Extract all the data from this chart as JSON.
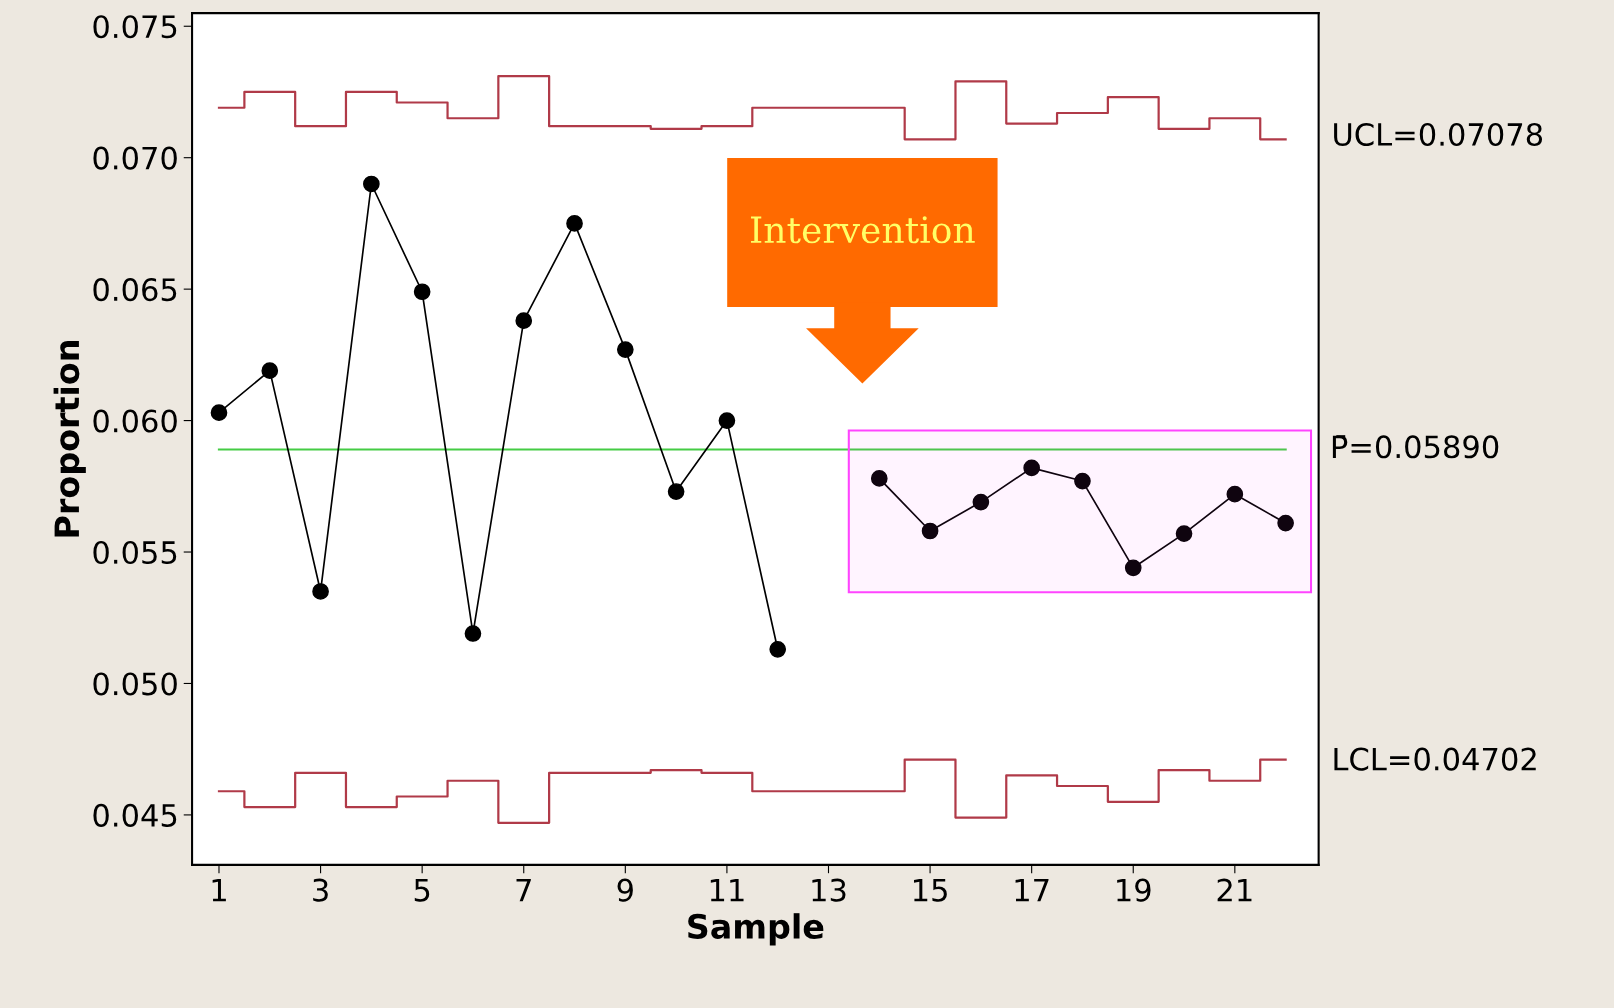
{
  "chart_data": {
    "type": "line",
    "xlabel": "Sample",
    "ylabel": "Proportion",
    "x": [
      1,
      2,
      3,
      4,
      5,
      6,
      7,
      8,
      9,
      10,
      11,
      12,
      13,
      14,
      15,
      16,
      17,
      18,
      19,
      20,
      21,
      22
    ],
    "series": [
      {
        "type": "step",
        "color": "#b03a48",
        "marker": "none",
        "values": [
          0.0719,
          0.0725,
          0.0712,
          0.0725,
          0.0721,
          0.0715,
          0.0731,
          0.0712,
          0.0712,
          0.0711,
          0.0712,
          0.0719,
          0.0719,
          0.0719,
          0.0707,
          0.0729,
          0.0713,
          0.0717,
          0.0723,
          0.0711,
          0.0715,
          0.0707
        ]
      },
      {
        "type": "step",
        "color": "#b03a48",
        "marker": "none",
        "values": [
          0.0459,
          0.0453,
          0.0466,
          0.0453,
          0.0457,
          0.0463,
          0.0447,
          0.0466,
          0.0466,
          0.0467,
          0.0466,
          0.0459,
          0.0459,
          0.0459,
          0.0471,
          0.0449,
          0.0465,
          0.0461,
          0.0455,
          0.0467,
          0.0463,
          0.0471
        ]
      },
      {
        "color": "#000000",
        "marker": "circle",
        "values": [
          0.0603,
          0.0619,
          0.0535,
          0.069,
          0.0649,
          0.0519,
          0.0638,
          0.0675,
          0.0627,
          0.0573,
          0.06,
          0.0513,
          null,
          0.0578,
          0.0558,
          0.0569,
          0.0582,
          0.0577,
          0.0544,
          0.0557,
          0.0572,
          0.0561
        ]
      }
    ],
    "ref_lines": [
      {
        "axis": "y",
        "value": 0.0589,
        "label": "P̄=0.05890",
        "color": "#44cc44"
      }
    ],
    "bands": [
      {
        "axis": "x",
        "from": 13.4,
        "to": 22.5,
        "color": "#ff44ff"
      }
    ],
    "annotations": [
      "Intervention",
      {
        "text": "UCL=0.07078",
        "x": 22,
        "y": 0.07078
      },
      {
        "text": "LCL=0.04702",
        "x": 22,
        "y": 0.04702
      }
    ],
    "xlim": [
      0.47,
      22.65
    ],
    "ylim": [
      0.0431,
      0.0755
    ],
    "xticks": [
      1,
      3,
      5,
      7,
      9,
      11,
      13,
      15,
      17,
      19,
      21
    ],
    "yticks": [
      {
        "value": 0.045,
        "label": "0.045"
      },
      {
        "value": 0.05,
        "label": "0.050"
      },
      {
        "value": 0.055,
        "label": "0.055"
      },
      {
        "value": 0.06,
        "label": "0.060"
      },
      {
        "value": 0.065,
        "label": "0.065"
      },
      {
        "value": 0.07,
        "label": "0.070"
      },
      {
        "value": 0.075,
        "label": "0.075"
      }
    ],
    "grid": false,
    "legend": false
  }
}
